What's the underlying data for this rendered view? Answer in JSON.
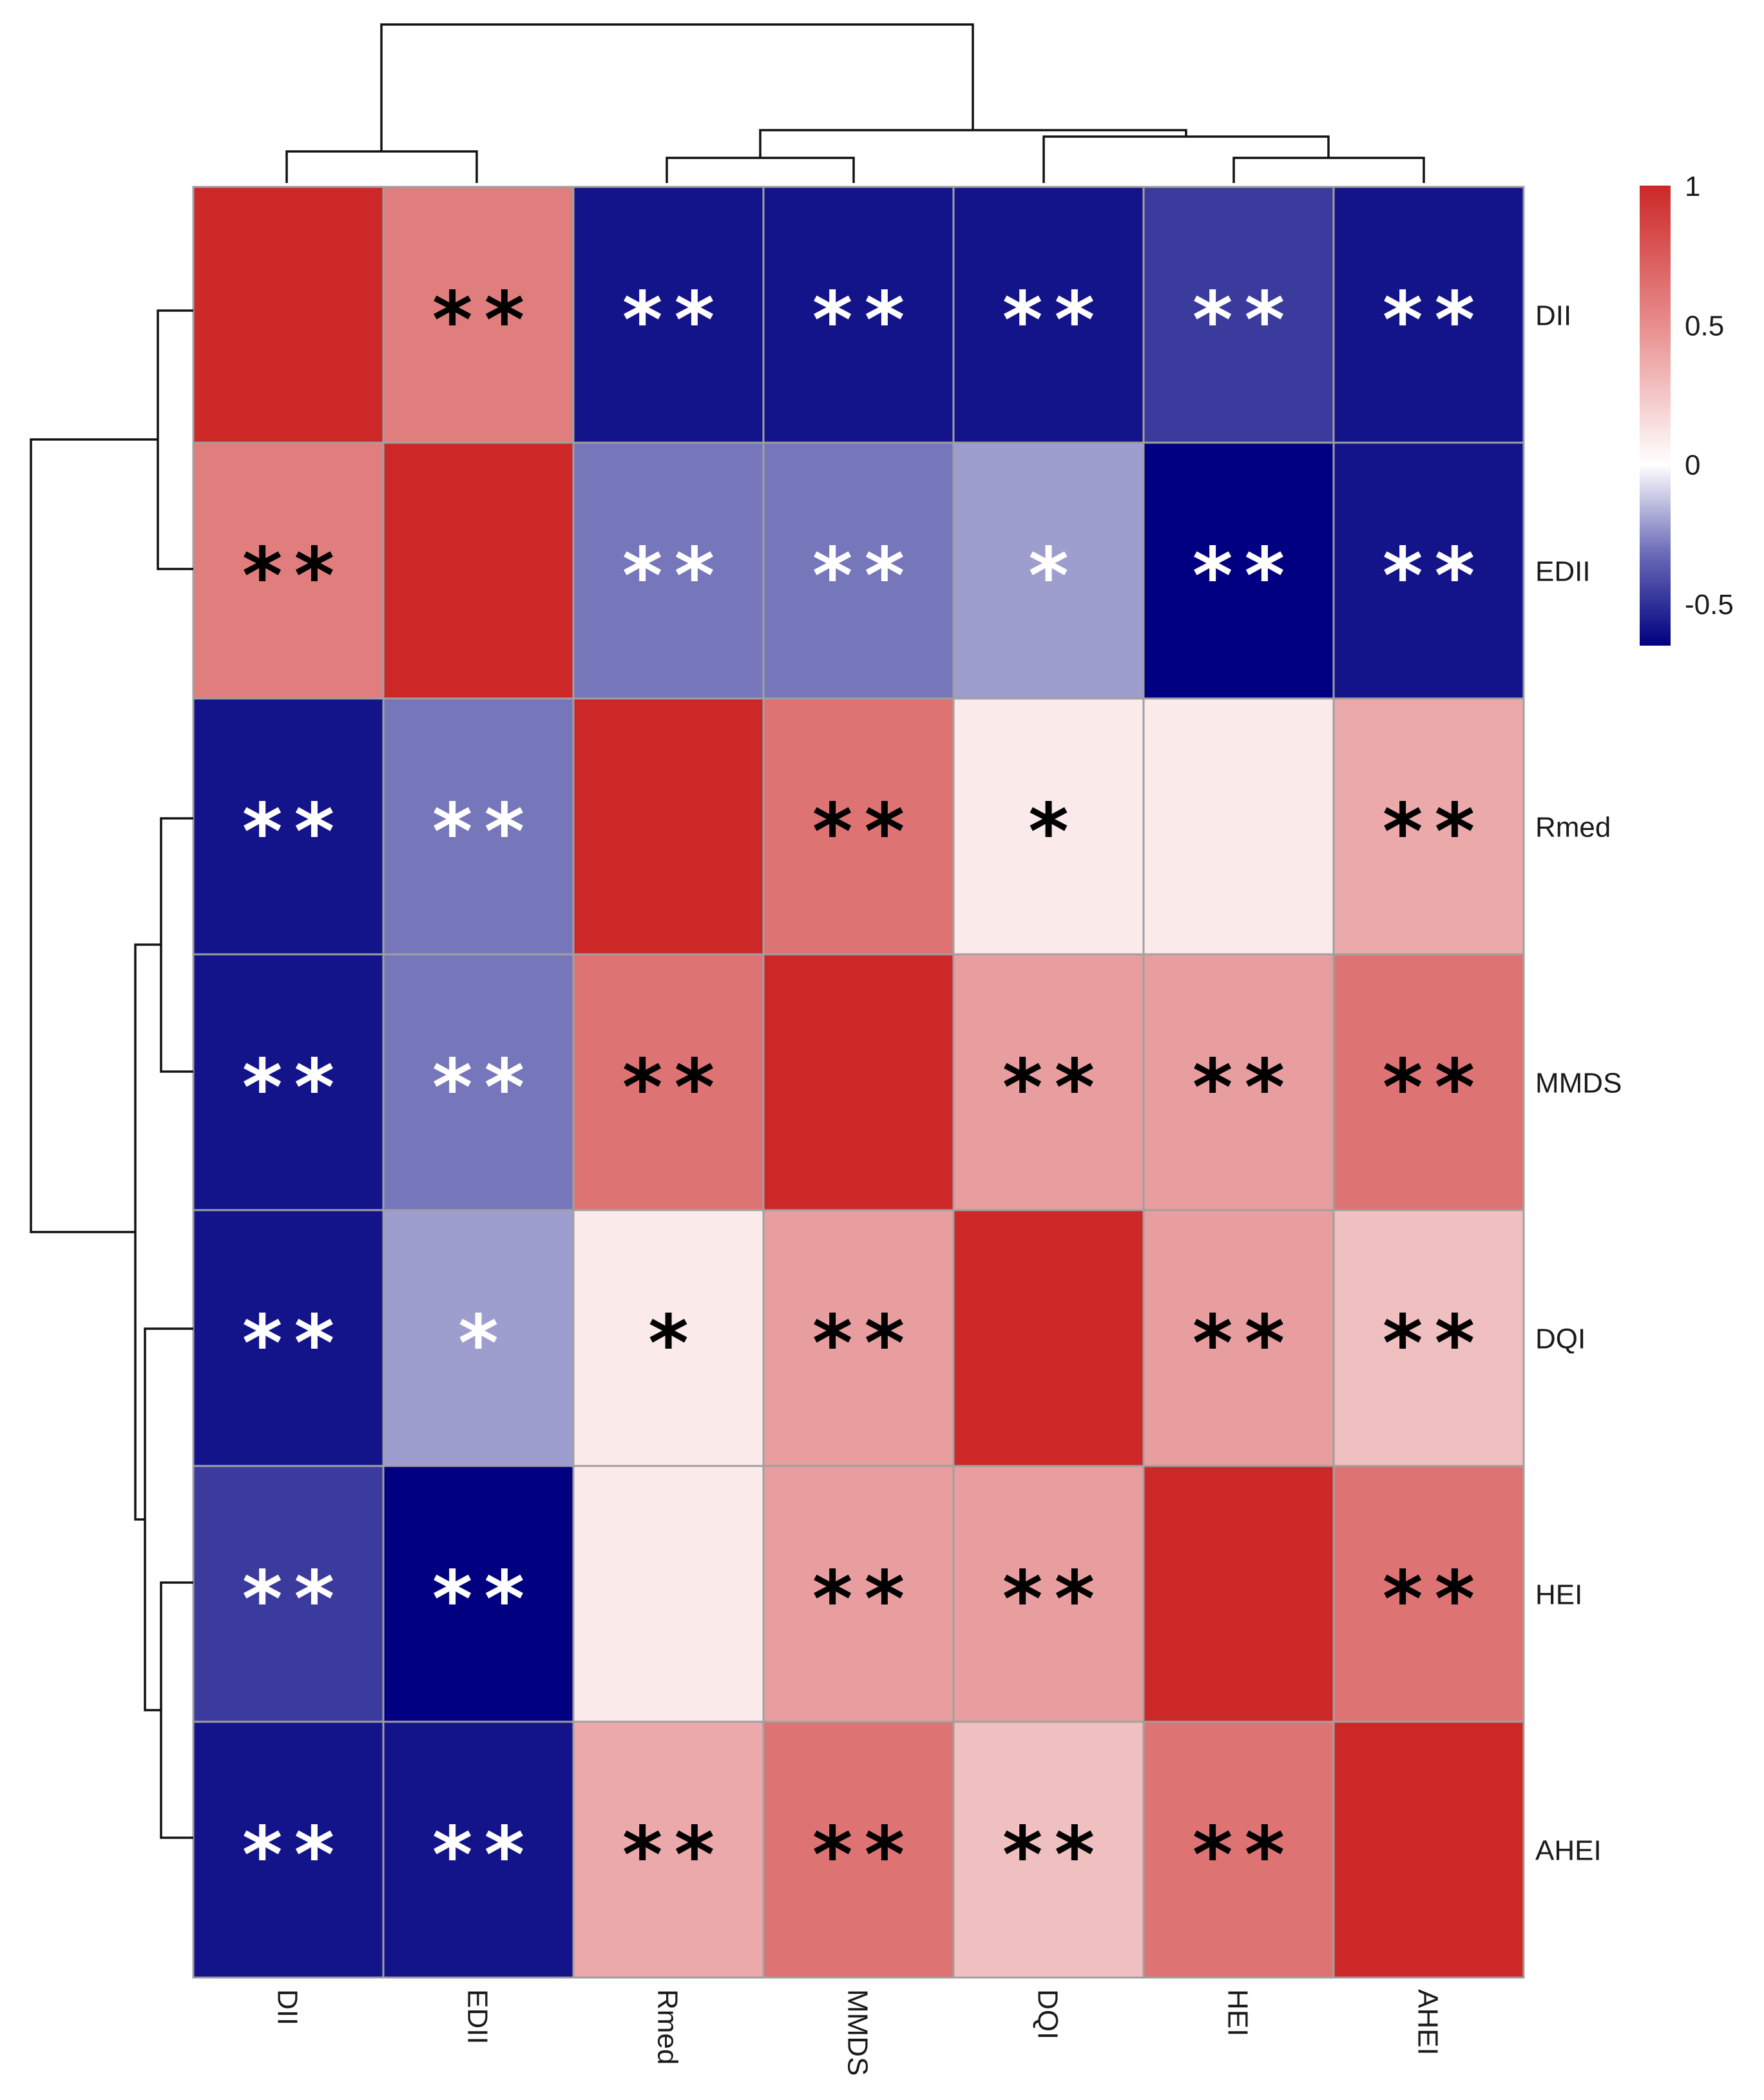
{
  "chart_data": {
    "type": "heatmap",
    "title": "",
    "xlabel": "",
    "ylabel": "",
    "rows": [
      "DII",
      "EDII",
      "Rmed",
      "MMDS",
      "DQI",
      "HEI",
      "AHEI"
    ],
    "columns": [
      "DII",
      "EDII",
      "Rmed",
      "MMDS",
      "DQI",
      "HEI",
      "AHEI"
    ],
    "values": [
      [
        1.0,
        0.6,
        -0.6,
        -0.6,
        -0.6,
        -0.5,
        -0.6
      ],
      [
        0.6,
        1.0,
        -0.35,
        -0.35,
        -0.25,
        -0.65,
        -0.6
      ],
      [
        -0.6,
        -0.35,
        1.0,
        0.65,
        0.1,
        0.1,
        0.4
      ],
      [
        -0.6,
        -0.35,
        0.65,
        1.0,
        0.45,
        0.45,
        0.65
      ],
      [
        -0.6,
        -0.25,
        0.1,
        0.45,
        1.0,
        0.45,
        0.3
      ],
      [
        -0.5,
        -0.65,
        0.1,
        0.45,
        0.45,
        1.0,
        0.65
      ],
      [
        -0.6,
        -0.6,
        0.4,
        0.65,
        0.3,
        0.65,
        1.0
      ]
    ],
    "significance": [
      [
        "",
        "**",
        "**",
        "**",
        "**",
        "**",
        "**"
      ],
      [
        "**",
        "",
        "**",
        "**",
        "*",
        "**",
        "**"
      ],
      [
        "**",
        "**",
        "",
        "**",
        "*",
        "",
        "**"
      ],
      [
        "**",
        "**",
        "**",
        "",
        "**",
        "**",
        "**"
      ],
      [
        "**",
        "*",
        "*",
        "**",
        "",
        "**",
        "**"
      ],
      [
        "**",
        "**",
        "",
        "**",
        "**",
        "",
        "**"
      ],
      [
        "**",
        "**",
        "**",
        "**",
        "**",
        "**",
        ""
      ]
    ],
    "color_scale": {
      "min": -0.65,
      "max": 1.0,
      "low_color": "#000080",
      "mid_color": "#ffffff",
      "high_color": "#cc2828",
      "ticks": [
        1,
        0.5,
        0,
        -0.5
      ],
      "tick_labels": [
        "1",
        "0.5",
        "0",
        "-0.5"
      ]
    },
    "legend_position": "top-right",
    "cluster_order_rows": "DII, EDII | Rmed, MMDS | DQI | HEI, AHEI",
    "cluster_order_cols": "DII, EDII | Rmed, MMDS | DQI | HEI, AHEI"
  }
}
